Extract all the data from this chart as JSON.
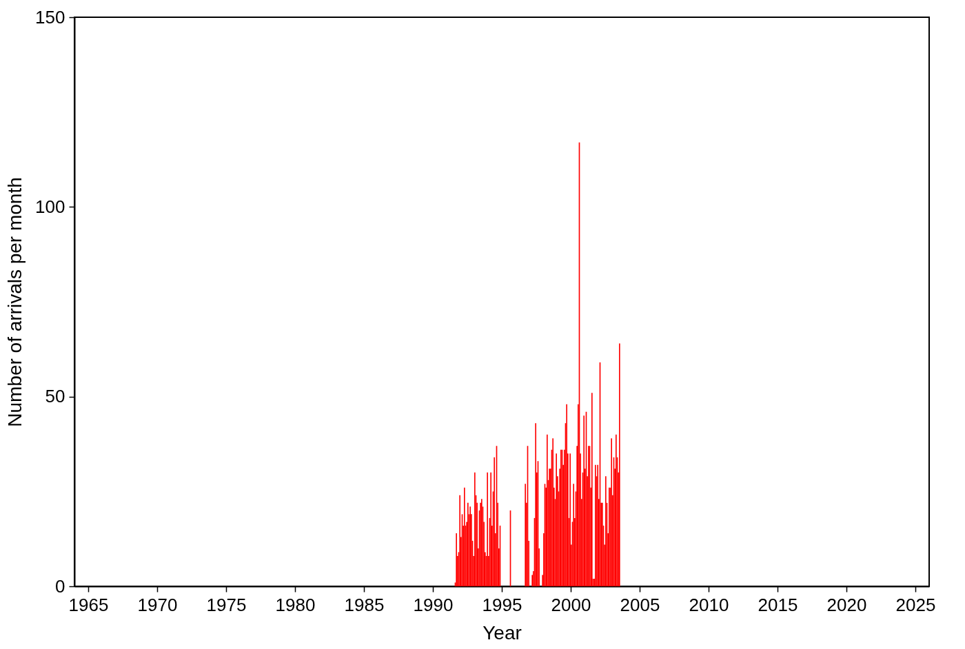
{
  "chart_data": {
    "type": "histogram",
    "xlabel": "Year",
    "ylabel": "Number of arrivals per month",
    "color": "#ff0000",
    "bins": [
      1991.583,
      1991.667,
      1991.75,
      1991.833,
      1991.917,
      1992.0,
      1992.083,
      1992.167,
      1992.25,
      1992.333,
      1992.417,
      1992.5,
      1992.583,
      1992.667,
      1992.75,
      1992.833,
      1992.917,
      1993.0,
      1993.083,
      1993.167,
      1993.25,
      1993.333,
      1993.417,
      1993.5,
      1993.583,
      1993.667,
      1993.75,
      1993.833,
      1993.917,
      1994.0,
      1994.083,
      1994.167,
      1994.25,
      1994.333,
      1994.417,
      1994.5,
      1994.583,
      1994.667,
      1994.75,
      1994.833,
      1994.917,
      1995.0,
      1995.083,
      1995.167,
      1995.25,
      1995.333,
      1995.417,
      1995.5,
      1995.583,
      1995.667,
      1995.75,
      1995.833,
      1995.917,
      1996.0,
      1996.083,
      1996.167,
      1996.25,
      1996.333,
      1996.417,
      1996.5,
      1996.583,
      1996.667,
      1996.75,
      1996.833,
      1996.917,
      1997.0,
      1997.083,
      1997.167,
      1997.25,
      1997.333,
      1997.417,
      1997.5,
      1997.583,
      1997.667,
      1997.75,
      1997.833,
      1997.917,
      1998.0,
      1998.083,
      1998.167,
      1998.25,
      1998.333,
      1998.417,
      1998.5,
      1998.583,
      1998.667,
      1998.75,
      1998.833,
      1998.917,
      1999.0,
      1999.083,
      1999.167,
      1999.25,
      1999.333,
      1999.417,
      1999.5,
      1999.583,
      1999.667,
      1999.75,
      1999.833,
      1999.917,
      2000.0,
      2000.083,
      2000.167,
      2000.25,
      2000.333,
      2000.417,
      2000.5,
      2000.583,
      2000.667,
      2000.75,
      2000.833,
      2000.917,
      2001.0,
      2001.083,
      2001.167,
      2001.25,
      2001.333,
      2001.417,
      2001.5,
      2001.583,
      2001.667,
      2001.75,
      2001.833,
      2001.917,
      2002.0,
      2002.083,
      2002.167,
      2002.25,
      2002.333,
      2002.417,
      2002.5,
      2002.583,
      2002.667,
      2002.75,
      2002.833,
      2002.917,
      2003.0,
      2003.083,
      2003.167,
      2003.25,
      2003.333,
      2003.417,
      2003.5,
      2003.583
    ],
    "values": [
      1,
      14,
      8,
      9,
      24,
      13,
      19,
      16,
      26,
      16,
      17,
      22,
      19,
      21,
      19,
      12,
      8,
      30,
      24,
      22,
      10,
      20,
      22,
      23,
      21,
      17,
      9,
      8,
      30,
      8,
      18,
      30,
      16,
      25,
      34,
      14,
      37,
      22,
      10,
      16,
      0,
      0,
      0,
      0,
      0,
      0,
      0,
      0,
      20,
      0,
      0,
      0,
      0,
      0,
      0,
      0,
      0,
      0,
      0,
      0,
      0,
      27,
      22,
      37,
      12,
      0,
      0,
      3,
      4,
      18,
      43,
      30,
      33,
      10,
      0,
      0,
      3,
      14,
      27,
      26,
      40,
      28,
      31,
      31,
      36,
      39,
      26,
      23,
      35,
      29,
      25,
      31,
      36,
      36,
      32,
      36,
      43,
      48,
      35,
      18,
      35,
      11,
      17,
      27,
      18,
      25,
      37,
      48,
      117,
      35,
      23,
      30,
      45,
      31,
      46,
      29,
      37,
      37,
      26,
      51,
      2,
      2,
      32,
      29,
      32,
      23,
      59,
      22,
      22,
      16,
      11,
      29,
      22,
      14,
      26,
      26,
      39,
      24,
      34,
      31,
      40,
      34,
      30,
      64
    ],
    "xlim": [
      1964,
      2026
    ],
    "xticks": [
      1965,
      1970,
      1975,
      1980,
      1985,
      1990,
      1995,
      2000,
      2005,
      2010,
      2015,
      2020,
      2025
    ],
    "ylim": [
      0,
      150
    ],
    "yticks": [
      0,
      50,
      100,
      150
    ],
    "grid": false
  }
}
